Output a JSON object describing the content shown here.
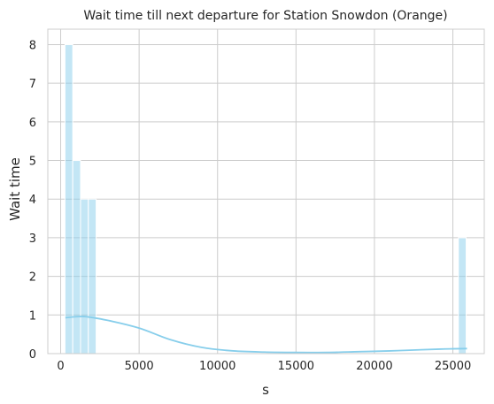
{
  "chart_data": {
    "type": "bar",
    "title": "Wait time till next departure for Station Snowdon (Orange)",
    "xlabel": "s",
    "ylabel": "Wait time",
    "xlim": [
      -820,
      27000
    ],
    "ylim": [
      0,
      8.4
    ],
    "xticks": [
      0,
      5000,
      10000,
      15000,
      20000,
      25000
    ],
    "yticks": [
      0,
      1,
      2,
      3,
      4,
      5,
      6,
      7,
      8
    ],
    "grid": true,
    "bin_width": 497,
    "histogram": [
      {
        "start": 273,
        "end": 770,
        "count": 8
      },
      {
        "start": 770,
        "end": 1267,
        "count": 5
      },
      {
        "start": 1267,
        "end": 1764,
        "count": 4
      },
      {
        "start": 1764,
        "end": 2261,
        "count": 4
      },
      {
        "start": 25350,
        "end": 25847,
        "count": 3
      }
    ],
    "kde": {
      "x": [
        300,
        1500,
        3000,
        5000,
        7000,
        9000,
        11000,
        13000,
        15000,
        17000,
        19000,
        21000,
        23000,
        24500,
        25900
      ],
      "y": [
        0.93,
        0.96,
        0.86,
        0.66,
        0.36,
        0.16,
        0.07,
        0.04,
        0.03,
        0.03,
        0.05,
        0.07,
        0.1,
        0.12,
        0.13
      ]
    },
    "colors": {
      "bar": "#87CEEB",
      "line": "#87CEEB",
      "grid": "#cccccc"
    }
  }
}
